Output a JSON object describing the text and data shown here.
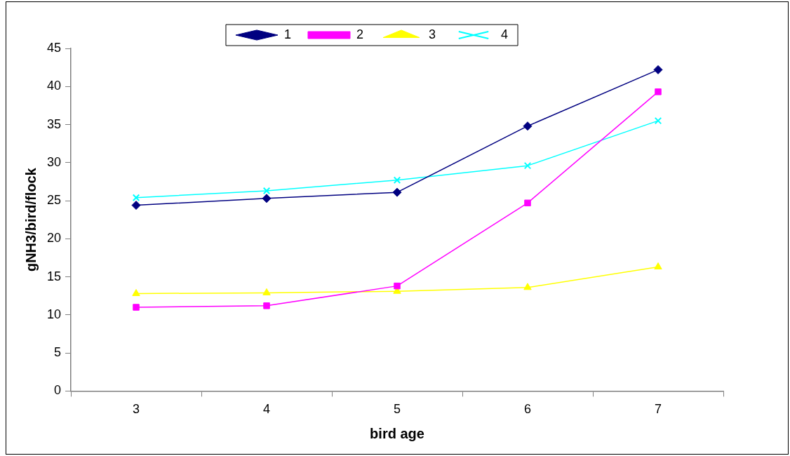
{
  "chart_data": {
    "type": "line",
    "xlabel": "bird age",
    "ylabel": "gNH3/bird/flock",
    "categories": [
      "3",
      "4",
      "5",
      "6",
      "7"
    ],
    "series": [
      {
        "name": "1",
        "color": "#000080",
        "marker": "diamond",
        "values": [
          24.4,
          25.3,
          26.1,
          34.8,
          42.2
        ]
      },
      {
        "name": "2",
        "color": "#ff00ff",
        "marker": "square",
        "values": [
          11.0,
          11.2,
          13.8,
          24.7,
          39.3
        ]
      },
      {
        "name": "3",
        "color": "#ffff00",
        "marker": "triangle",
        "values": [
          12.8,
          12.9,
          13.1,
          13.6,
          16.3
        ]
      },
      {
        "name": "4",
        "color": "#00ffff",
        "marker": "cross",
        "values": [
          25.4,
          26.3,
          27.7,
          29.6,
          35.5
        ]
      }
    ],
    "ylim": [
      0,
      45
    ],
    "yticks": [
      0,
      5,
      10,
      15,
      20,
      25,
      30,
      35,
      40,
      45
    ],
    "grid": false,
    "legend": "top",
    "line_style": "solid"
  }
}
